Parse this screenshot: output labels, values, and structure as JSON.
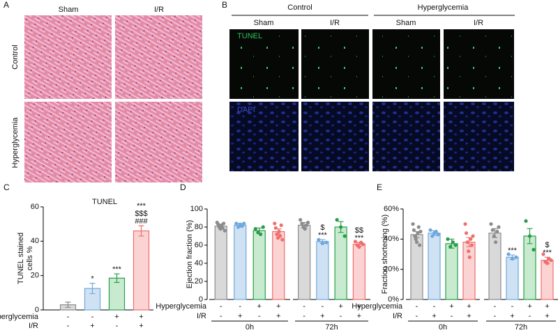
{
  "panel_a": {
    "label": "A",
    "columns": [
      "Sham",
      "I/R"
    ],
    "rows": [
      "Control",
      "Hyperglycemia"
    ]
  },
  "panel_b": {
    "label": "B",
    "groups": [
      "Control",
      "Hyperglycemia"
    ],
    "columns": [
      "Sham",
      "I/R",
      "Sham",
      "I/R"
    ],
    "stains": [
      "TUNEL",
      "DAPI"
    ]
  },
  "chart_data": [
    {
      "type": "bar",
      "label": "C",
      "title": "TUNEL",
      "ylabel": [
        "TUNEL stained",
        "cells %"
      ],
      "values": [
        3,
        12.5,
        18.5,
        46
      ],
      "errors": [
        1.5,
        3,
        2.5,
        3
      ],
      "colors": [
        "#8c8c8c",
        "#6fa8dc",
        "#2a9d4a",
        "#ef6f6f"
      ],
      "fill_colors": [
        "#d9d9d9",
        "#cfe2f3",
        "#c8ebd0",
        "#fbd3d3"
      ],
      "annotations": [
        [],
        [
          "*"
        ],
        [
          "***"
        ],
        [
          "***",
          "$$$",
          "###"
        ]
      ],
      "conditions": [
        {
          "name": "Hyperglycemia",
          "signs": [
            "-",
            "-",
            "+",
            "+"
          ]
        },
        {
          "name": "I/R",
          "signs": [
            "-",
            "+",
            "-",
            "+"
          ]
        }
      ],
      "ylim": [
        0,
        60
      ],
      "yticks": [
        0,
        20,
        40,
        60
      ]
    },
    {
      "type": "bar",
      "label": "D",
      "ylabel": [
        "Ejection fraction (%)"
      ],
      "values": [
        81,
        82,
        76,
        75,
        82,
        64,
        80,
        61
      ],
      "errors": [
        2,
        2,
        3,
        3,
        3,
        2,
        6,
        2
      ],
      "points": [
        [
          85,
          83,
          80,
          78,
          82,
          79,
          84,
          76
        ],
        [
          84,
          80,
          83,
          81,
          84
        ],
        [
          78,
          74,
          72,
          80
        ],
        [
          84,
          79,
          72,
          68,
          75,
          70,
          82,
          66
        ],
        [
          88,
          84,
          80,
          78,
          82,
          85
        ],
        [
          66,
          62,
          63
        ],
        [
          88,
          80,
          70
        ],
        [
          64,
          60,
          58,
          63,
          61
        ]
      ],
      "colors": [
        "#8c8c8c",
        "#6fa8dc",
        "#2a9d4a",
        "#ef6f6f",
        "#8c8c8c",
        "#6fa8dc",
        "#2a9d4a",
        "#ef6f6f"
      ],
      "fill_colors": [
        "#d9d9d9",
        "#cfe2f3",
        "#c8ebd0",
        "#fbd3d3",
        "#d9d9d9",
        "#cfe2f3",
        "#c8ebd0",
        "#fbd3d3"
      ],
      "annotations": [
        [],
        [],
        [],
        [],
        [],
        [
          "$",
          "***"
        ],
        [],
        [
          "$$",
          "***"
        ]
      ],
      "conditions": [
        {
          "name": "Hyperglycemia",
          "signs": [
            "-",
            "-",
            "+",
            "+",
            "-",
            "-",
            "+",
            "+"
          ]
        },
        {
          "name": "I/R",
          "signs": [
            "-",
            "+",
            "-",
            "+",
            "-",
            "+",
            "-",
            "+"
          ]
        }
      ],
      "groups": [
        "0h",
        "72h"
      ],
      "ylim": [
        0,
        100
      ],
      "yticks": [
        0,
        20,
        40,
        60,
        80,
        100
      ]
    },
    {
      "type": "bar",
      "label": "E",
      "ylabel": [
        "Fraction shortening (%)"
      ],
      "values": [
        43,
        44,
        37,
        38,
        44,
        28,
        42,
        26
      ],
      "errors": [
        2,
        1.5,
        3,
        3,
        3,
        1.5,
        5,
        2
      ],
      "points": [
        [
          50,
          46,
          42,
          40,
          38,
          44,
          48,
          36,
          45
        ],
        [
          46,
          42,
          44,
          45,
          43
        ],
        [
          40,
          35,
          38,
          36
        ],
        [
          50,
          44,
          38,
          32,
          28,
          40,
          36,
          42
        ],
        [
          50,
          46,
          42,
          38,
          45,
          48
        ],
        [
          30,
          27,
          28
        ],
        [
          52,
          42,
          33
        ],
        [
          30,
          25,
          24,
          27,
          26
        ]
      ],
      "colors": [
        "#8c8c8c",
        "#6fa8dc",
        "#2a9d4a",
        "#ef6f6f",
        "#8c8c8c",
        "#6fa8dc",
        "#2a9d4a",
        "#ef6f6f"
      ],
      "fill_colors": [
        "#d9d9d9",
        "#cfe2f3",
        "#c8ebd0",
        "#fbd3d3",
        "#d9d9d9",
        "#cfe2f3",
        "#c8ebd0",
        "#fbd3d3"
      ],
      "annotations": [
        [],
        [],
        [],
        [],
        [],
        [
          "***"
        ],
        [],
        [
          "$",
          "***"
        ]
      ],
      "conditions": [
        {
          "name": "Hyperglycemia",
          "signs": [
            "-",
            "-",
            "+",
            "+",
            "-",
            "-",
            "+",
            "+"
          ]
        },
        {
          "name": "I/R",
          "signs": [
            "-",
            "+",
            "-",
            "+",
            "-",
            "+",
            "-",
            "+"
          ]
        }
      ],
      "groups": [
        "0h",
        "72h"
      ],
      "ylim": [
        0,
        60
      ],
      "yticks": [
        {
          "value": 0,
          "label": "0%"
        },
        {
          "value": 20,
          "label": "20%"
        },
        {
          "value": 40,
          "label": "40%"
        },
        {
          "value": 60,
          "label": "60%"
        }
      ]
    }
  ]
}
